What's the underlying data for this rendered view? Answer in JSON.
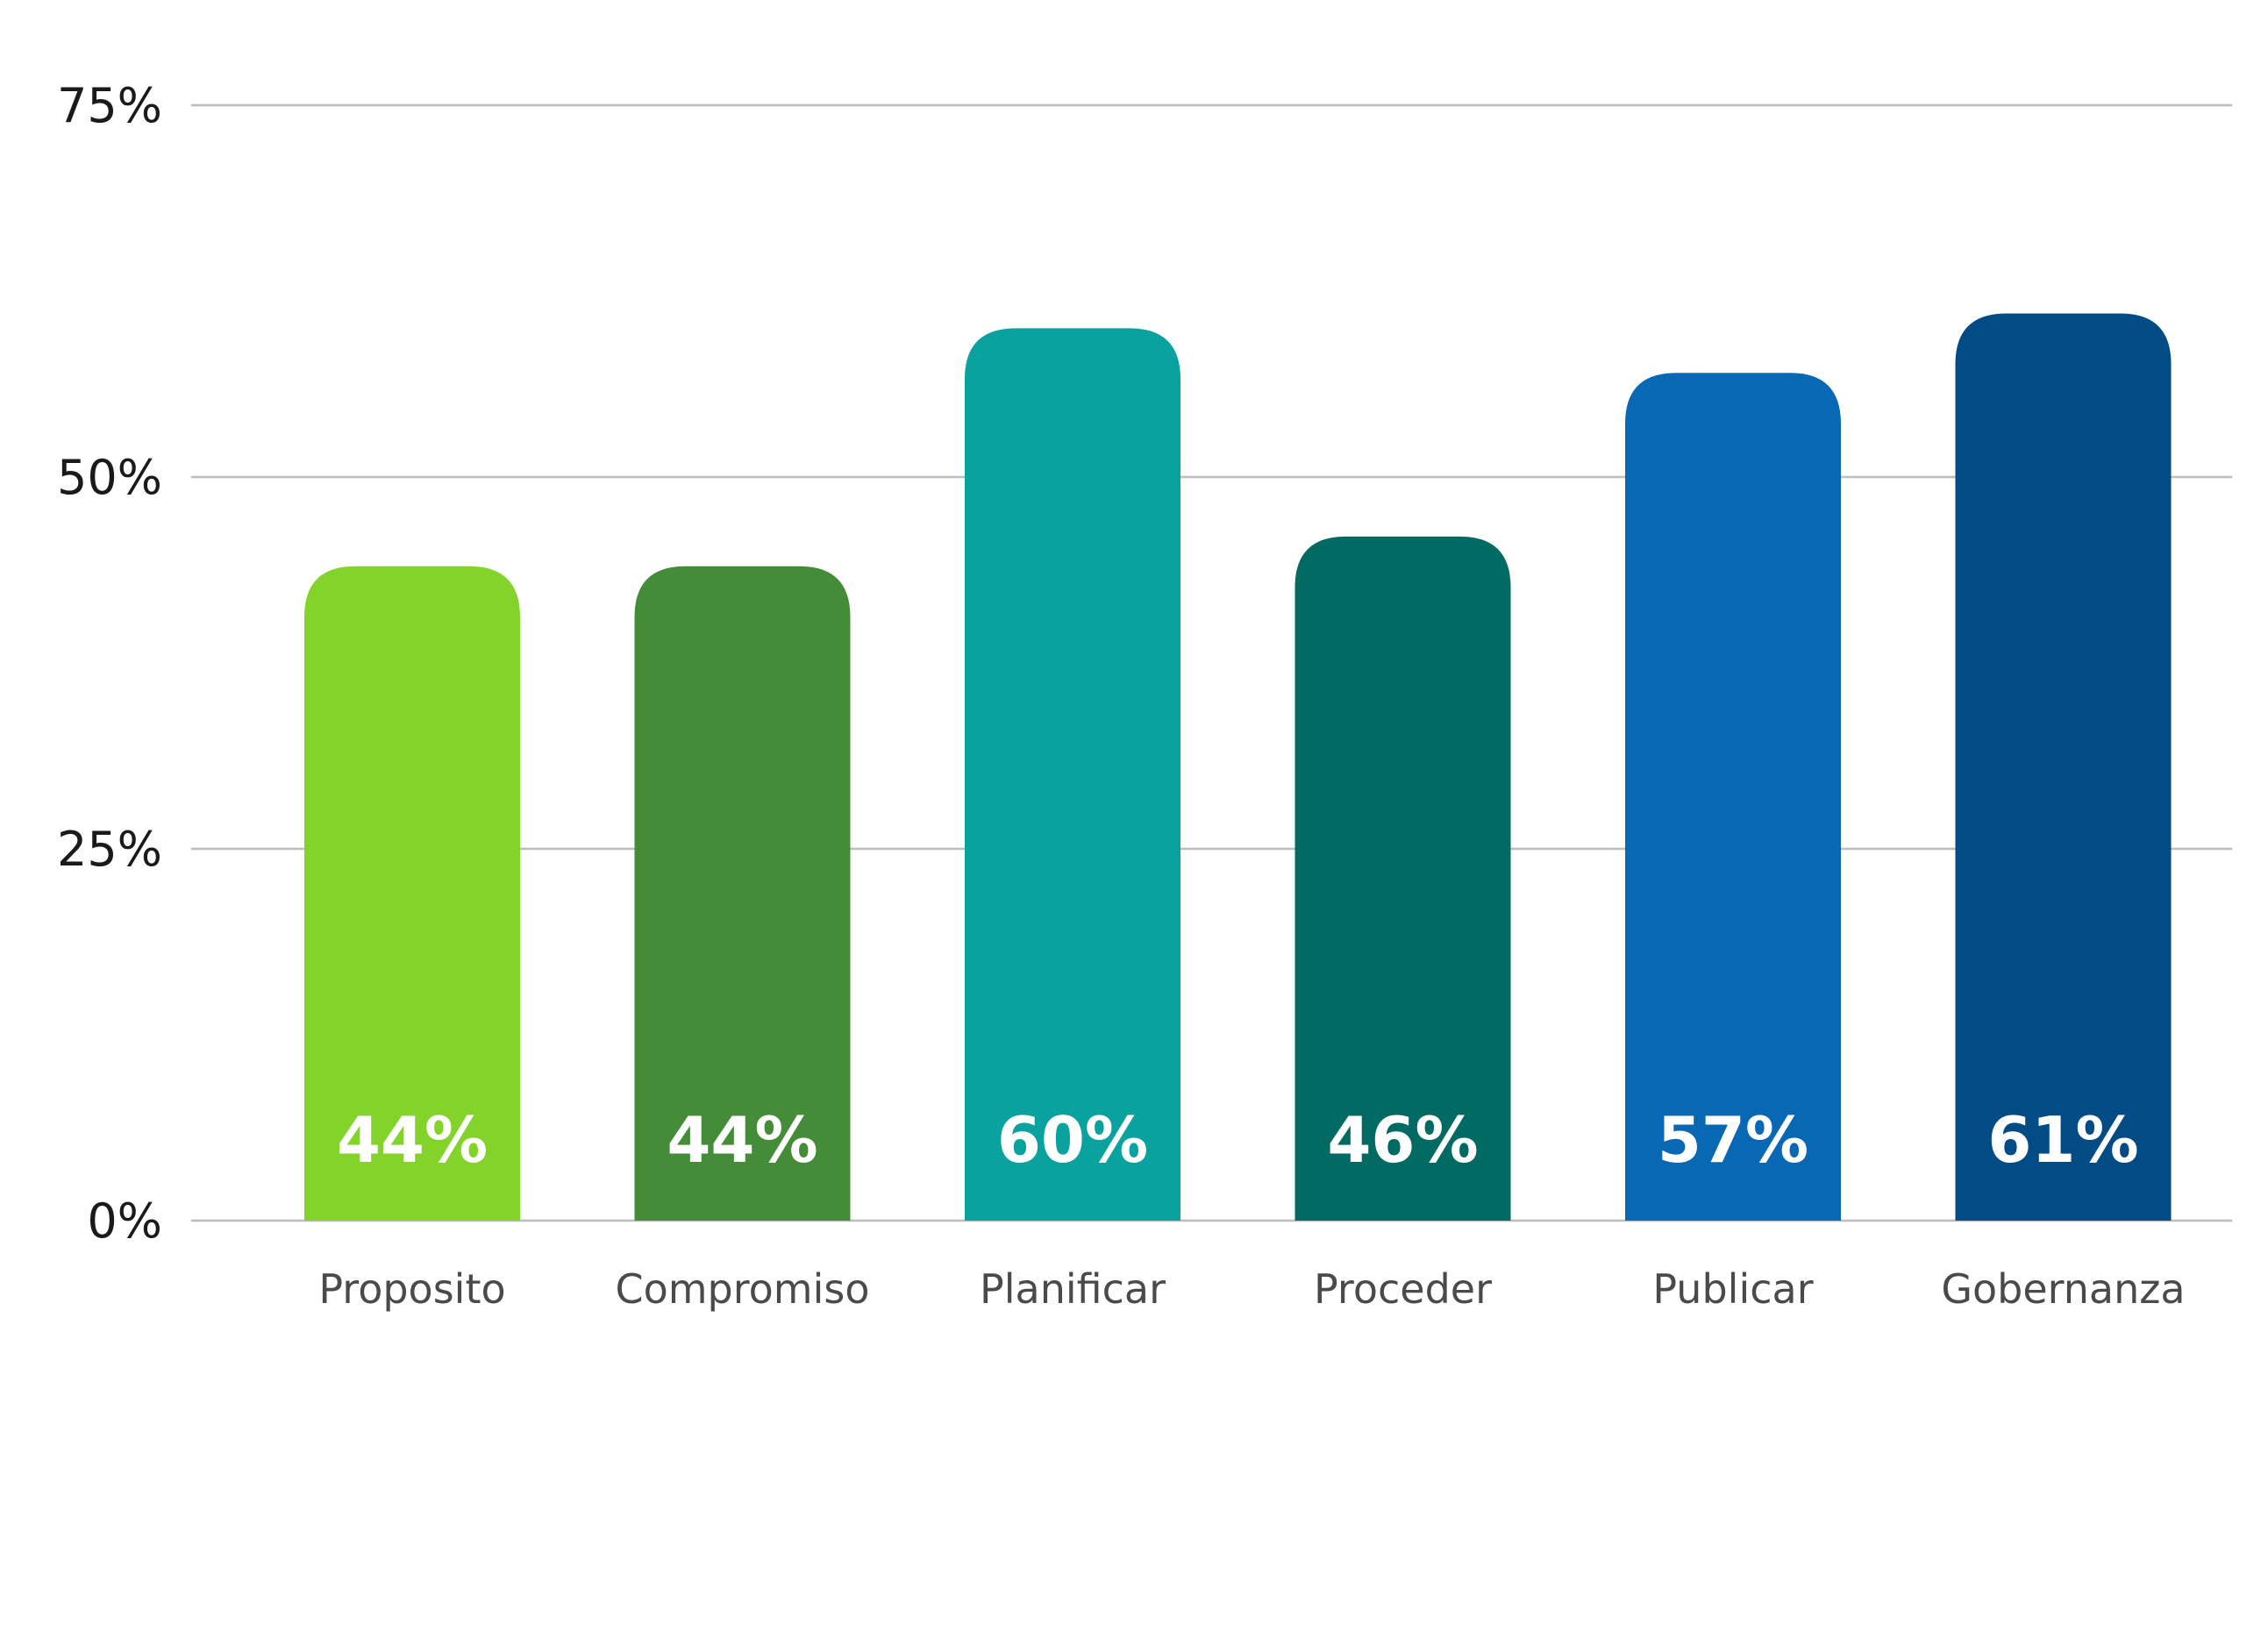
{
  "chart_data": {
    "type": "bar",
    "title": "",
    "xlabel": "",
    "ylabel": "",
    "ylim": [
      0,
      75
    ],
    "yticks": [
      0,
      25,
      50,
      75
    ],
    "ytick_labels": [
      "0%",
      "25%",
      "50%",
      "75%"
    ],
    "grid": true,
    "categories": [
      "Proposito",
      "Compromiso",
      "Planificar",
      "Proceder",
      "Publicar",
      "Gobernanza"
    ],
    "values": [
      44,
      44,
      60,
      46,
      57,
      61
    ],
    "value_labels": [
      "44%",
      "44%",
      "60%",
      "46%",
      "57%",
      "61%"
    ],
    "colors": [
      "#84d32a",
      "#448c37",
      "#09a29e",
      "#016a63",
      "#0968b4",
      "#024b85"
    ]
  }
}
